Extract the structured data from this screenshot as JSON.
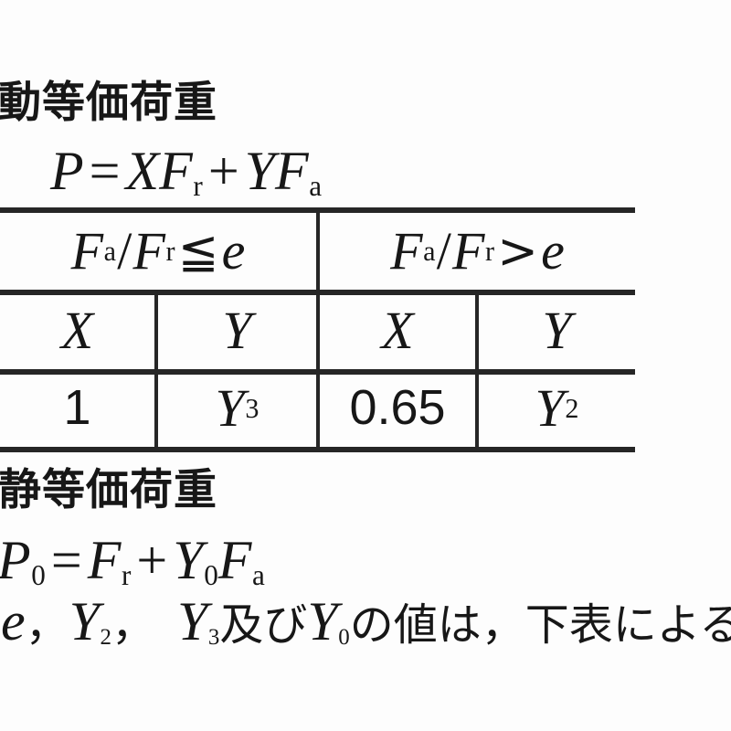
{
  "colors": {
    "ink": "#1d1d1d",
    "line": "#262626",
    "background": "#fdfdfd"
  },
  "dynamic_section": {
    "heading": "動等価荷重",
    "formula": [
      {
        "t": "P",
        "k": "var"
      },
      {
        "t": "=",
        "k": "op"
      },
      {
        "t": "XF",
        "k": "var"
      },
      {
        "t": "r",
        "k": "sub"
      },
      {
        "t": "+",
        "k": "op"
      },
      {
        "t": "YF",
        "k": "var"
      },
      {
        "t": "a",
        "k": "sub"
      }
    ]
  },
  "table": {
    "headers": [
      [
        {
          "t": "F",
          "k": "var"
        },
        {
          "t": "a",
          "k": "sub"
        },
        {
          "t": "/",
          "k": "slash"
        },
        {
          "t": "F",
          "k": "var"
        },
        {
          "t": "r",
          "k": "sub"
        },
        {
          "t": "≦",
          "k": "rel"
        },
        {
          "t": "e",
          "k": "var"
        }
      ],
      [
        {
          "t": "F",
          "k": "var"
        },
        {
          "t": "a",
          "k": "sub"
        },
        {
          "t": "/",
          "k": "slash"
        },
        {
          "t": "F",
          "k": "var"
        },
        {
          "t": "r",
          "k": "sub"
        },
        {
          "t": ">",
          "k": "rel"
        },
        {
          "t": "e",
          "k": "var"
        }
      ]
    ],
    "subheaders": [
      "X",
      "Y",
      "X",
      "Y"
    ],
    "values": [
      [
        {
          "t": "1",
          "k": "num"
        }
      ],
      [
        {
          "t": "Y",
          "k": "var"
        },
        {
          "t": "3",
          "k": "sub"
        }
      ],
      [
        {
          "t": "0.65",
          "k": "num"
        }
      ],
      [
        {
          "t": "Y",
          "k": "var"
        },
        {
          "t": "2",
          "k": "sub"
        }
      ]
    ]
  },
  "static_section": {
    "heading": "静等価荷重",
    "formula": [
      {
        "t": "P",
        "k": "var"
      },
      {
        "t": "0",
        "k": "sub"
      },
      {
        "t": "=",
        "k": "op"
      },
      {
        "t": "F",
        "k": "var"
      },
      {
        "t": "r",
        "k": "sub"
      },
      {
        "t": "+",
        "k": "op"
      },
      {
        "t": "Y",
        "k": "var"
      },
      {
        "t": "0",
        "k": "sub"
      },
      {
        "t": "F",
        "k": "var"
      },
      {
        "t": "a",
        "k": "sub"
      }
    ]
  },
  "note": [
    {
      "t": "e",
      "k": "var"
    },
    {
      "t": "，",
      "k": "cjk"
    },
    {
      "t": "Y",
      "k": "var"
    },
    {
      "t": "2",
      "k": "sub"
    },
    {
      "t": "，",
      "k": "cjk"
    },
    {
      "t": "",
      "k": "gap"
    },
    {
      "t": "Y",
      "k": "var"
    },
    {
      "t": "3",
      "k": "sub"
    },
    {
      "t": "及び",
      "k": "cjk"
    },
    {
      "t": "Y",
      "k": "var"
    },
    {
      "t": "0",
      "k": "sub"
    },
    {
      "t": "の値は，下表による。",
      "k": "cjk"
    }
  ]
}
